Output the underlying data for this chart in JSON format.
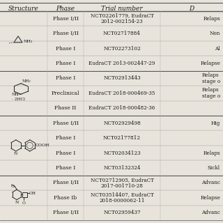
{
  "headers": [
    "Structure",
    "Phase",
    "Trial number",
    "D"
  ],
  "rows": [
    [
      "",
      "Phase I/II",
      "NCT02261779, EudraCT\n2012-002154-23",
      "Relaps"
    ],
    [
      "",
      "Phase I/II",
      "NCT02717884",
      "Non"
    ],
    [
      "",
      "Phase I",
      "NCT02273102",
      "Al"
    ],
    [
      "",
      "Phase I",
      "EudraCT 2013-002447-29",
      "Relapse"
    ],
    [
      "",
      "Phase I",
      "NCT02913443",
      "Relaps\nstage o"
    ],
    [
      "",
      "Preclinical",
      "EudraCT 2018-000469-35",
      "Relaps\nstage o"
    ],
    [
      "",
      "Phase II",
      "EudraCT 2018-000482-36",
      ""
    ],
    [
      "",
      "Phase I/II",
      "NCT02929498",
      "Hig"
    ],
    [
      "",
      "Phase I",
      "NCT02177812",
      ""
    ],
    [
      "",
      "Phase I",
      "NCT02034123",
      "Relaps"
    ],
    [
      "",
      "Phase I",
      "NCT03132324",
      "Sickl"
    ],
    [
      "",
      "Phase I/II",
      "NCT02712905, EudraCT\n2017-001710-28",
      "Advanc"
    ],
    [
      "",
      "Phase Ib",
      "NCT03514407, EudraCT\n2018-0000062-11",
      "Relapse"
    ],
    [
      "",
      "Phase I/II",
      "NCT02959437",
      "Advanc"
    ]
  ],
  "group_dividers": [
    4,
    7,
    11
  ],
  "bg_color": "#e8e4dc",
  "text_color": "#1a1a1a",
  "font_size": 5.5,
  "header_font_size": 6.5,
  "figsize": [
    3.2,
    3.2
  ],
  "dpi": 100
}
